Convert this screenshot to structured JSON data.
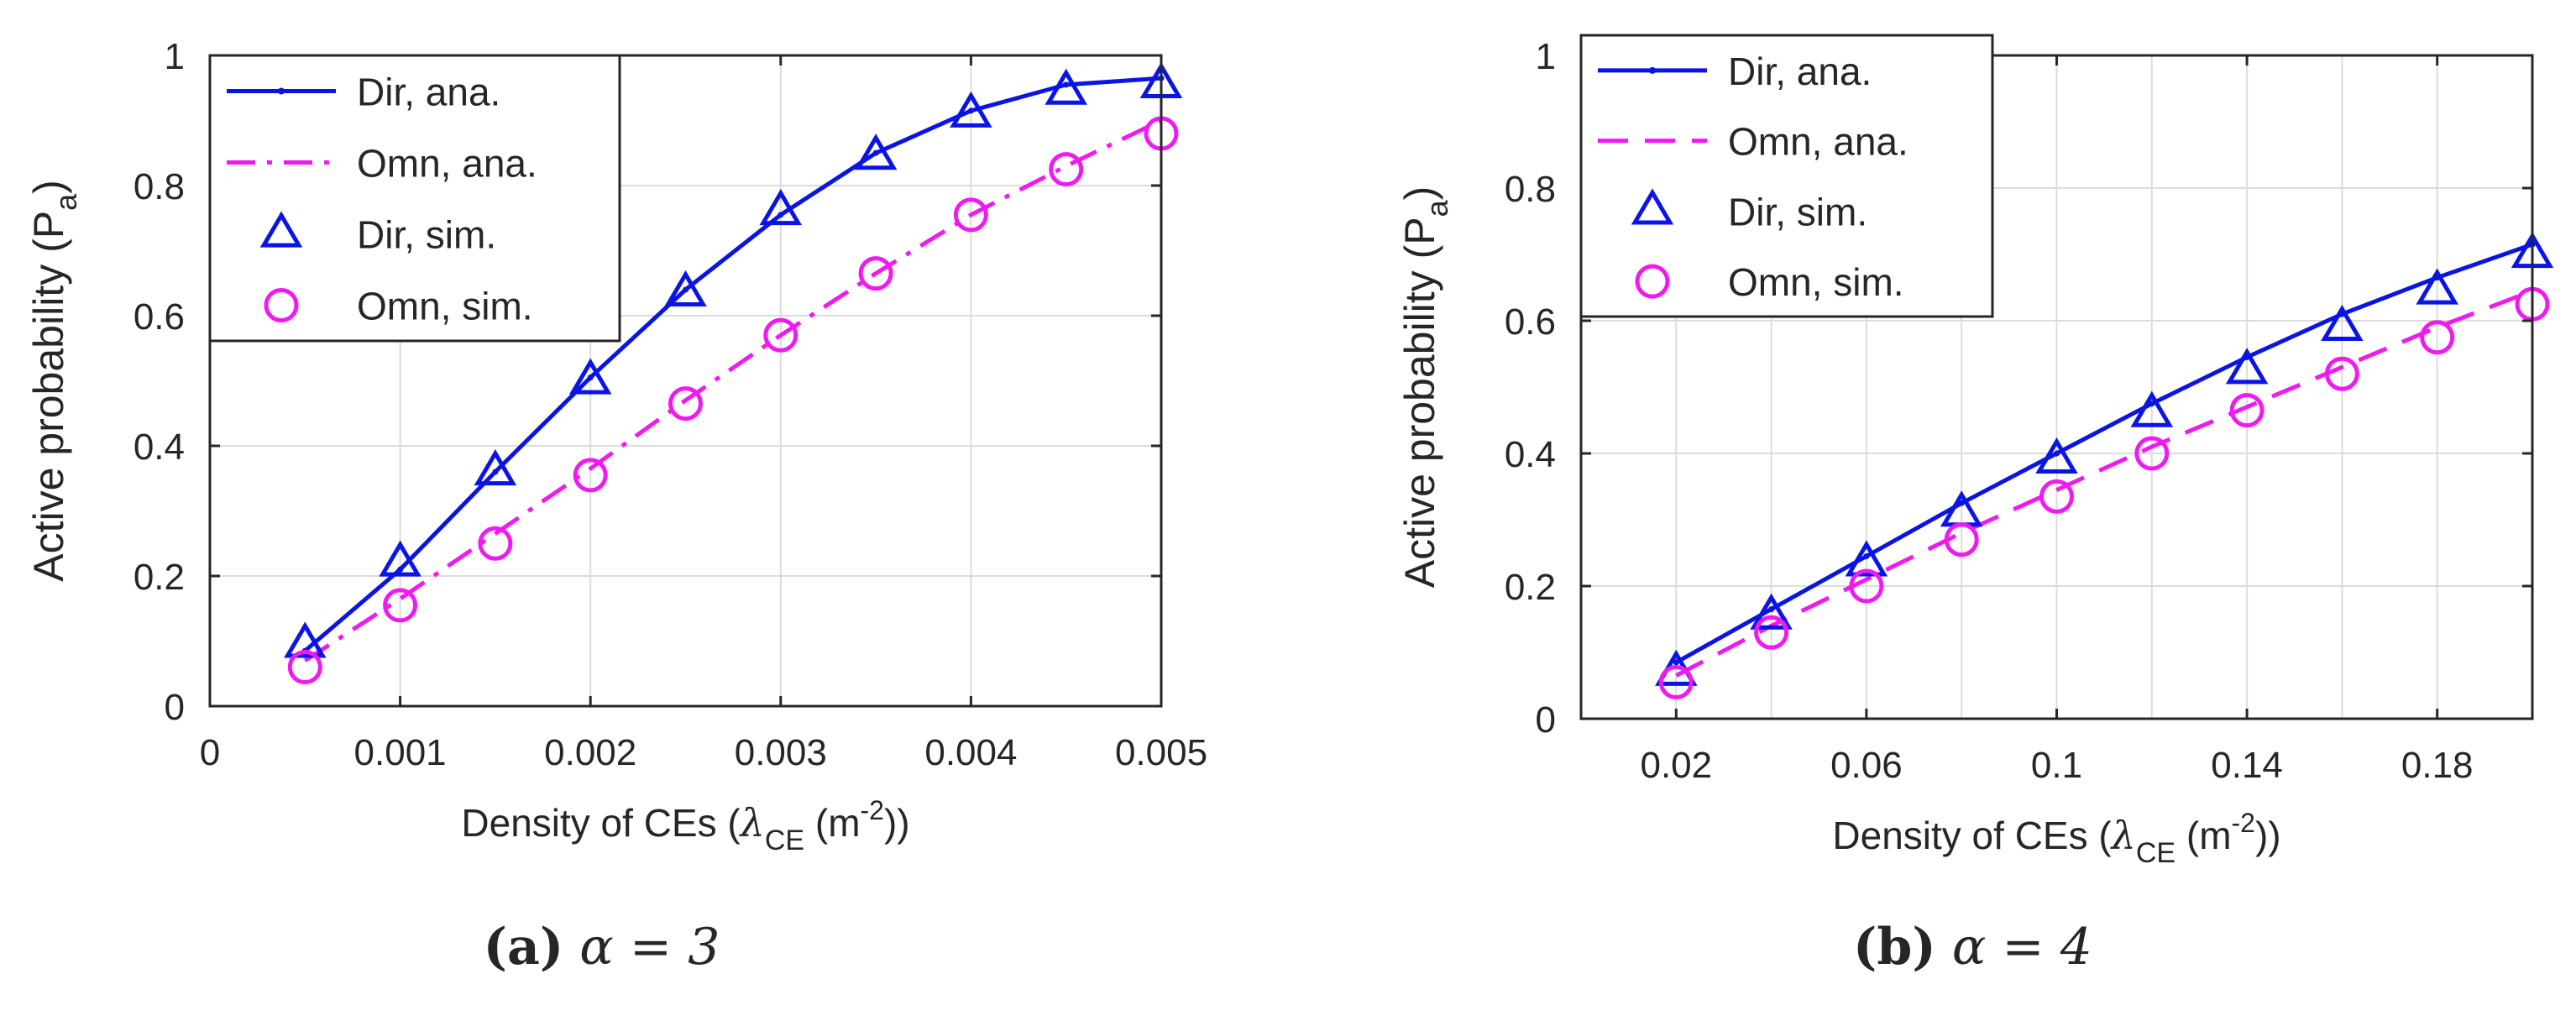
{
  "colors": {
    "dir": "#0a14e6",
    "omn": "#f01af0",
    "axis": "#262626",
    "grid": "#dcdcdc"
  },
  "chart_data": [
    {
      "type": "line",
      "caption": {
        "label": "(a)",
        "formula": "α = 3"
      },
      "xlabel": {
        "prefix": "Density of CEs (",
        "symbol": "λ",
        "sub": "CE",
        "unit": " (m",
        "sup": "-2",
        "suffix": "))"
      },
      "ylabel": {
        "text": "Active probability (P",
        "sub": "a",
        "suffix": ")"
      },
      "xlim": [
        0,
        0.005
      ],
      "ylim": [
        0,
        1
      ],
      "xticks": [
        0,
        0.001,
        0.002,
        0.003,
        0.004,
        0.005
      ],
      "xtick_labels": [
        "0",
        "0.001",
        "0.002",
        "0.003",
        "0.004",
        "0.005"
      ],
      "yticks": [
        0,
        0.2,
        0.4,
        0.6,
        0.8,
        1
      ],
      "ytick_labels": [
        "0",
        "0.2",
        "0.4",
        "0.6",
        "0.8",
        "1"
      ],
      "grid": true,
      "legend_position": "top-left",
      "series": [
        {
          "name": "Dir, ana.",
          "style": "line-dot",
          "color": "dir",
          "x": [
            0.0005,
            0.001,
            0.0015,
            0.002,
            0.0025,
            0.003,
            0.0035,
            0.004,
            0.0045,
            0.005
          ],
          "y": [
            0.085,
            0.21,
            0.36,
            0.505,
            0.64,
            0.755,
            0.85,
            0.915,
            0.955,
            0.965
          ]
        },
        {
          "name": "Omn, ana.",
          "style": "dashdot",
          "color": "omn",
          "x": [
            0.0005,
            0.001,
            0.0015,
            0.002,
            0.0025,
            0.003,
            0.0035,
            0.004,
            0.0045,
            0.005
          ],
          "y": [
            0.07,
            0.165,
            0.265,
            0.365,
            0.47,
            0.57,
            0.665,
            0.755,
            0.83,
            0.9
          ]
        },
        {
          "name": "Dir, sim.",
          "style": "triangle",
          "color": "dir",
          "x": [
            0.0005,
            0.001,
            0.0015,
            0.002,
            0.0025,
            0.003,
            0.0035,
            0.004,
            0.0045,
            0.005
          ],
          "y": [
            0.095,
            0.22,
            0.36,
            0.5,
            0.635,
            0.76,
            0.845,
            0.91,
            0.945,
            0.955
          ]
        },
        {
          "name": "Omn, sim.",
          "style": "circle",
          "color": "omn",
          "x": [
            0.0005,
            0.001,
            0.0015,
            0.002,
            0.0025,
            0.003,
            0.0035,
            0.004,
            0.0045,
            0.005
          ],
          "y": [
            0.06,
            0.155,
            0.25,
            0.355,
            0.465,
            0.57,
            0.665,
            0.755,
            0.825,
            0.88
          ]
        }
      ]
    },
    {
      "type": "line",
      "caption": {
        "label": "(b)",
        "formula": "α = 4"
      },
      "xlabel": {
        "prefix": "Density of CEs (",
        "symbol": "λ",
        "sub": "CE",
        "unit": " (m",
        "sup": "-2",
        "suffix": "))"
      },
      "ylabel": {
        "text": "Active probability (P",
        "sub": "a",
        "suffix": ")"
      },
      "xlim": [
        0,
        0.2
      ],
      "ylim": [
        0,
        1
      ],
      "xticks": [
        0.02,
        0.06,
        0.1,
        0.14,
        0.18
      ],
      "xtick_labels": [
        "0.02",
        "0.06",
        "0.1",
        "0.14",
        "0.18"
      ],
      "xgrid": [
        0.02,
        0.04,
        0.06,
        0.08,
        0.1,
        0.12,
        0.14,
        0.16,
        0.18
      ],
      "yticks": [
        0,
        0.2,
        0.4,
        0.6,
        0.8,
        1
      ],
      "ytick_labels": [
        "0",
        "0.2",
        "0.4",
        "0.6",
        "0.8",
        "1"
      ],
      "grid": true,
      "legend_position": "top-left",
      "series": [
        {
          "name": "Dir, ana.",
          "style": "line-dot",
          "color": "dir",
          "x": [
            0.02,
            0.04,
            0.06,
            0.08,
            0.1,
            0.12,
            0.14,
            0.16,
            0.18,
            0.2
          ],
          "y": [
            0.085,
            0.165,
            0.245,
            0.325,
            0.4,
            0.475,
            0.545,
            0.61,
            0.665,
            0.715
          ]
        },
        {
          "name": "Omn, ana.",
          "style": "dash",
          "color": "omn",
          "x": [
            0.02,
            0.04,
            0.06,
            0.08,
            0.1,
            0.12,
            0.14,
            0.16,
            0.18,
            0.2
          ],
          "y": [
            0.065,
            0.14,
            0.21,
            0.28,
            0.345,
            0.41,
            0.47,
            0.53,
            0.59,
            0.645
          ]
        },
        {
          "name": "Dir, sim.",
          "style": "triangle",
          "color": "dir",
          "x": [
            0.02,
            0.04,
            0.06,
            0.08,
            0.1,
            0.12,
            0.14,
            0.16,
            0.18,
            0.2
          ],
          "y": [
            0.07,
            0.155,
            0.235,
            0.31,
            0.39,
            0.46,
            0.525,
            0.59,
            0.645,
            0.7
          ]
        },
        {
          "name": "Omn, sim.",
          "style": "circle",
          "color": "omn",
          "x": [
            0.02,
            0.04,
            0.06,
            0.08,
            0.1,
            0.12,
            0.14,
            0.16,
            0.18,
            0.2
          ],
          "y": [
            0.055,
            0.13,
            0.2,
            0.27,
            0.335,
            0.4,
            0.465,
            0.52,
            0.575,
            0.625
          ]
        }
      ]
    }
  ]
}
